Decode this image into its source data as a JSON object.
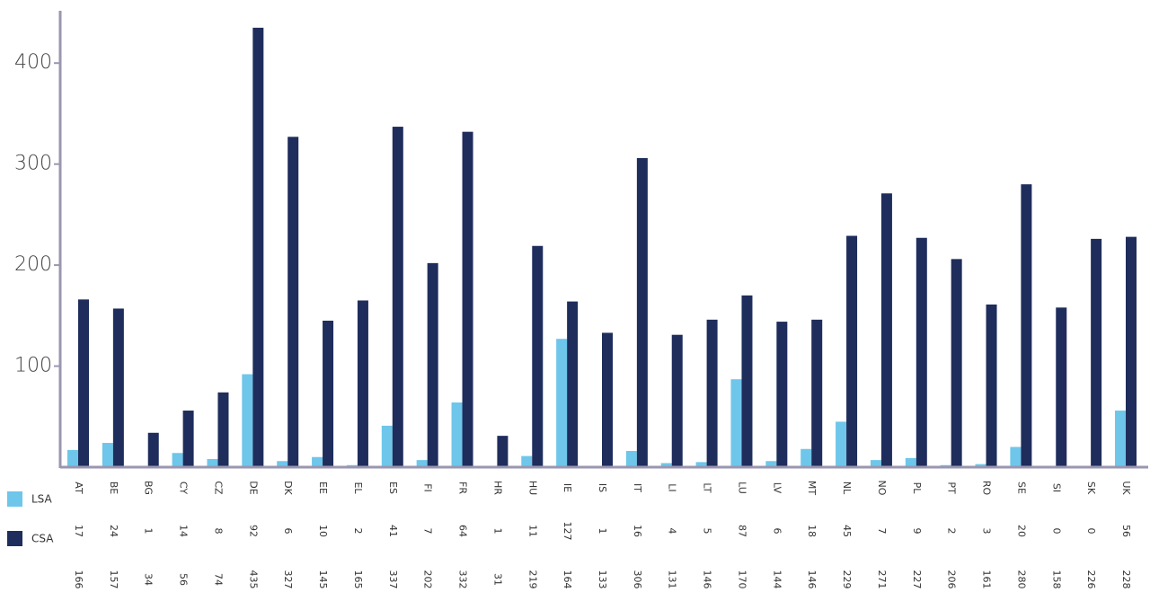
{
  "chart_data": {
    "type": "bar",
    "categories": [
      "AT",
      "BE",
      "BG",
      "CY",
      "CZ",
      "DE",
      "DK",
      "EE",
      "EL",
      "ES",
      "FI",
      "FR",
      "HR",
      "HU",
      "IE",
      "IS",
      "IT",
      "LI",
      "LT",
      "LU",
      "LV",
      "MT",
      "NL",
      "NO",
      "PL",
      "PT",
      "RO",
      "SE",
      "SI",
      "SK",
      "UK"
    ],
    "series": [
      {
        "name": "LSA",
        "color": "#6ec6ea",
        "values": [
          17,
          24,
          1,
          14,
          8,
          92,
          6,
          10,
          2,
          41,
          7,
          64,
          1,
          11,
          127,
          1,
          16,
          4,
          5,
          87,
          6,
          18,
          45,
          7,
          9,
          2,
          3,
          20,
          0,
          0,
          56
        ]
      },
      {
        "name": "CSA",
        "color": "#1f2d5c",
        "values": [
          166,
          157,
          34,
          56,
          74,
          435,
          327,
          145,
          165,
          337,
          202,
          332,
          31,
          219,
          164,
          133,
          306,
          131,
          146,
          170,
          144,
          146,
          229,
          271,
          227,
          206,
          161,
          280,
          158,
          226,
          228
        ]
      }
    ],
    "ylim": [
      0,
      450
    ],
    "yticks": [
      100,
      200,
      300,
      400
    ]
  }
}
